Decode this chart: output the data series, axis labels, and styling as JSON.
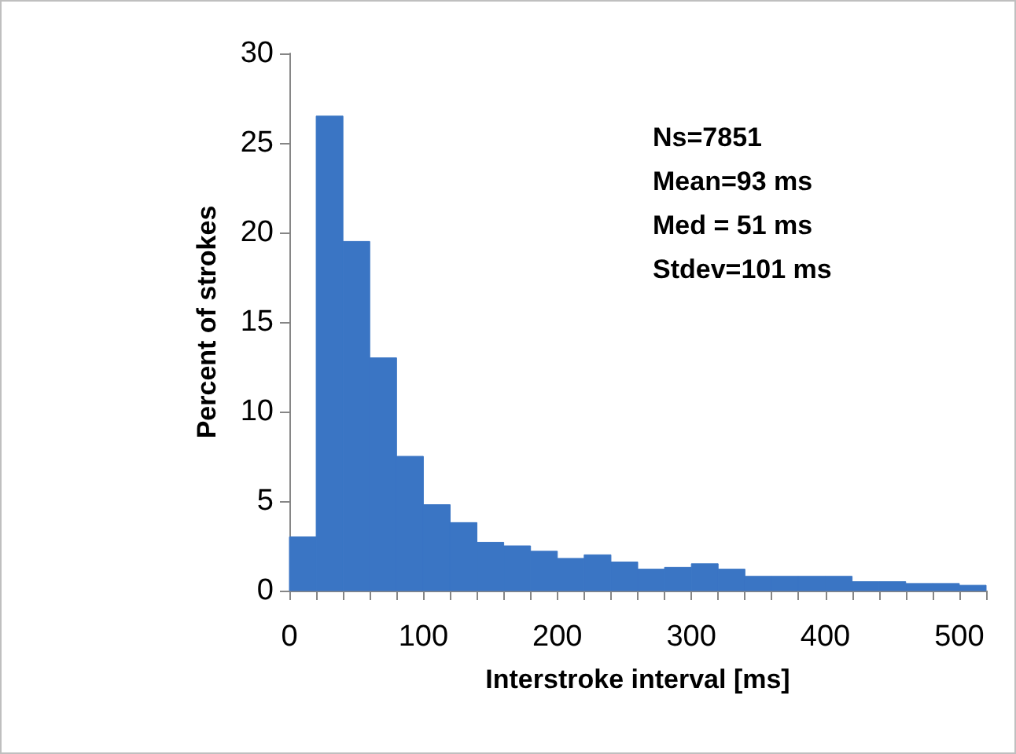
{
  "chart_data": {
    "type": "histogram",
    "xlabel": "Interstroke interval [ms]",
    "ylabel": "Percent of strokes",
    "bins": [
      0,
      20,
      40,
      60,
      80,
      100,
      120,
      140,
      160,
      180,
      200,
      220,
      240,
      260,
      280,
      300,
      320,
      340,
      360,
      380,
      400,
      420,
      440,
      460,
      480,
      500,
      520
    ],
    "values": [
      3.0,
      26.5,
      19.5,
      13.0,
      7.5,
      4.8,
      3.8,
      2.7,
      2.5,
      2.2,
      1.8,
      2.0,
      1.6,
      1.2,
      1.3,
      1.5,
      1.2,
      0.8,
      0.8,
      0.8,
      0.8,
      0.5,
      0.5,
      0.4,
      0.4,
      0.3
    ],
    "color": "#3a75c4",
    "xlim": [
      0,
      520
    ],
    "xticks": [
      0,
      100,
      200,
      300,
      400,
      500
    ],
    "ylim": [
      0,
      30
    ],
    "yticks": [
      0,
      5,
      10,
      15,
      20,
      25,
      30
    ],
    "grid": false,
    "annotations": [
      "Ns=7851",
      "Mean=93 ms",
      "Med = 51 ms",
      "Stdev=101 ms"
    ]
  }
}
